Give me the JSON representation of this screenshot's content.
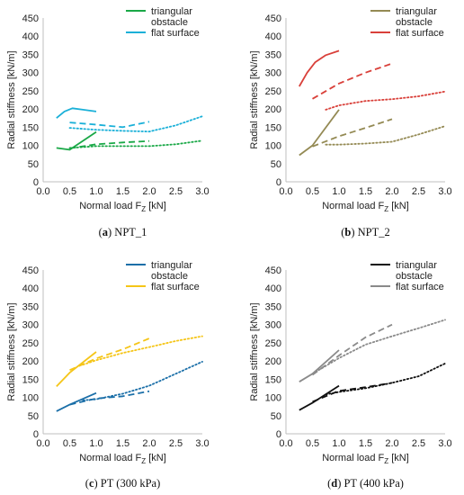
{
  "chart_data": [
    {
      "type": "line",
      "caption_letter": "a",
      "caption_text": "NPT_1",
      "xlabel": "Normal load F",
      "xlabel_sub": "Z",
      "xlabel_unit": " [kN]",
      "ylabel": "Radial stiffness [kN/m]",
      "xlim": [
        0,
        3
      ],
      "ylim": [
        0,
        450
      ],
      "xticks": [
        "0.0",
        "0.5",
        "1.0",
        "1.5",
        "2.0",
        "2.5",
        "3.0"
      ],
      "yticks": [
        "0",
        "50",
        "100",
        "150",
        "200",
        "250",
        "300",
        "350",
        "400",
        "450"
      ],
      "legend": [
        "triangular obstacle",
        "flat surface"
      ],
      "colors": [
        "#1aa847",
        "#1ab0d8"
      ],
      "series": [
        {
          "name": "triangular obstacle",
          "style": "solid",
          "x": [
            0.25,
            0.5,
            1.0
          ],
          "y": [
            93,
            88,
            137
          ]
        },
        {
          "name": "triangular obstacle",
          "style": "dashed",
          "x": [
            0.5,
            1.0,
            1.5,
            2.0
          ],
          "y": [
            92,
            103,
            108,
            112
          ]
        },
        {
          "name": "triangular obstacle",
          "style": "dotted",
          "x": [
            0.5,
            1.0,
            1.5,
            2.0,
            2.5,
            3.0
          ],
          "y": [
            93,
            98,
            98,
            98,
            103,
            113
          ]
        },
        {
          "name": "flat surface",
          "style": "solid",
          "x": [
            0.25,
            0.4,
            0.55,
            0.75,
            1.0
          ],
          "y": [
            175,
            193,
            202,
            198,
            193
          ]
        },
        {
          "name": "flat surface",
          "style": "dashed",
          "x": [
            0.5,
            1.0,
            1.5,
            2.0
          ],
          "y": [
            163,
            157,
            150,
            165
          ]
        },
        {
          "name": "flat surface",
          "style": "dotted",
          "x": [
            0.5,
            1.0,
            1.5,
            2.0,
            2.5,
            3.0
          ],
          "y": [
            148,
            143,
            140,
            138,
            155,
            180
          ]
        }
      ]
    },
    {
      "type": "line",
      "caption_letter": "b",
      "caption_text": "NPT_2",
      "xlabel": "Normal load F",
      "xlabel_sub": "Z",
      "xlabel_unit": " [kN]",
      "ylabel": "Radial stiffness [kN/m]",
      "xlim": [
        0,
        3
      ],
      "ylim": [
        0,
        450
      ],
      "xticks": [
        "0.0",
        "0.5",
        "1.0",
        "1.5",
        "2.0",
        "2.5",
        "3.0"
      ],
      "yticks": [
        "0",
        "50",
        "100",
        "150",
        "200",
        "250",
        "300",
        "350",
        "400",
        "450"
      ],
      "legend": [
        "triangular obstacle",
        "flat surface"
      ],
      "colors": [
        "#948a54",
        "#d9403a"
      ],
      "series": [
        {
          "name": "triangular obstacle",
          "style": "solid",
          "x": [
            0.25,
            0.5,
            1.0
          ],
          "y": [
            73,
            100,
            198
          ]
        },
        {
          "name": "triangular obstacle",
          "style": "dashed",
          "x": [
            0.5,
            1.0,
            1.5,
            2.0
          ],
          "y": [
            97,
            125,
            148,
            172
          ]
        },
        {
          "name": "triangular obstacle",
          "style": "dotted",
          "x": [
            0.75,
            1.0,
            1.5,
            2.0,
            2.5,
            3.0
          ],
          "y": [
            102,
            102,
            105,
            110,
            130,
            153
          ]
        },
        {
          "name": "flat surface",
          "style": "solid",
          "x": [
            0.25,
            0.4,
            0.55,
            0.75,
            1.0
          ],
          "y": [
            262,
            300,
            328,
            348,
            360
          ]
        },
        {
          "name": "flat surface",
          "style": "dashed",
          "x": [
            0.5,
            1.0,
            1.5,
            2.0
          ],
          "y": [
            228,
            270,
            300,
            325
          ]
        },
        {
          "name": "flat surface",
          "style": "dotted",
          "x": [
            0.75,
            1.0,
            1.5,
            2.0,
            2.5,
            3.0
          ],
          "y": [
            198,
            210,
            222,
            227,
            235,
            248
          ]
        }
      ]
    },
    {
      "type": "line",
      "caption_letter": "c",
      "caption_text": "PT (300 kPa)",
      "xlabel": "Normal load F",
      "xlabel_sub": "Z",
      "xlabel_unit": " [kN]",
      "ylabel": "Radial stiffness [kN/m]",
      "xlim": [
        0,
        3
      ],
      "ylim": [
        0,
        450
      ],
      "xticks": [
        "0.0",
        "0.5",
        "1.0",
        "1.5",
        "2.0",
        "2.5",
        "3.0"
      ],
      "yticks": [
        "0",
        "50",
        "100",
        "150",
        "200",
        "250",
        "300",
        "350",
        "400",
        "450"
      ],
      "legend": [
        "triangular obstacle",
        "flat surface"
      ],
      "colors": [
        "#1b6fa8",
        "#f5c518"
      ],
      "series": [
        {
          "name": "triangular obstacle",
          "style": "solid",
          "x": [
            0.25,
            0.5,
            1.0
          ],
          "y": [
            62,
            80,
            112
          ]
        },
        {
          "name": "triangular obstacle",
          "style": "dashed",
          "x": [
            0.5,
            1.0,
            1.5,
            2.0
          ],
          "y": [
            80,
            97,
            103,
            117
          ]
        },
        {
          "name": "triangular obstacle",
          "style": "dotted",
          "x": [
            0.75,
            1.0,
            1.5,
            2.0,
            2.5,
            3.0
          ],
          "y": [
            92,
            95,
            110,
            132,
            165,
            198
          ]
        },
        {
          "name": "flat surface",
          "style": "solid",
          "x": [
            0.25,
            0.5,
            1.0
          ],
          "y": [
            130,
            168,
            225
          ]
        },
        {
          "name": "flat surface",
          "style": "dashed",
          "x": [
            0.5,
            1.0,
            1.5,
            2.0
          ],
          "y": [
            175,
            207,
            232,
            262
          ]
        },
        {
          "name": "flat surface",
          "style": "dotted",
          "x": [
            0.75,
            1.0,
            1.5,
            2.0,
            2.5,
            3.0
          ],
          "y": [
            190,
            202,
            222,
            238,
            255,
            268
          ]
        }
      ]
    },
    {
      "type": "line",
      "caption_letter": "d",
      "caption_text": "PT (400 kPa)",
      "xlabel": "Normal load F",
      "xlabel_sub": "Z",
      "xlabel_unit": " [kN]",
      "ylabel": "Radial stiffness [kN/m]",
      "xlim": [
        0,
        3
      ],
      "ylim": [
        0,
        450
      ],
      "xticks": [
        "0.0",
        "0.5",
        "1.0",
        "1.5",
        "2.0",
        "2.5",
        "3.0"
      ],
      "yticks": [
        "0",
        "50",
        "100",
        "150",
        "200",
        "250",
        "300",
        "350",
        "400",
        "450"
      ],
      "legend": [
        "triangular obstacle",
        "flat surface"
      ],
      "colors": [
        "#111111",
        "#8a8a8a"
      ],
      "series": [
        {
          "name": "triangular obstacle",
          "style": "solid",
          "x": [
            0.25,
            0.5,
            1.0
          ],
          "y": [
            65,
            85,
            132
          ]
        },
        {
          "name": "triangular obstacle",
          "style": "dashed",
          "x": [
            0.5,
            1.0,
            1.5,
            2.0
          ],
          "y": [
            88,
            118,
            128,
            140
          ]
        },
        {
          "name": "triangular obstacle",
          "style": "dotted",
          "x": [
            0.75,
            1.0,
            1.5,
            2.0,
            2.5,
            3.0
          ],
          "y": [
            108,
            115,
            125,
            140,
            158,
            193
          ]
        },
        {
          "name": "flat surface",
          "style": "solid",
          "x": [
            0.25,
            0.5,
            1.0
          ],
          "y": [
            143,
            165,
            230
          ]
        },
        {
          "name": "flat surface",
          "style": "dashed",
          "x": [
            0.5,
            1.0,
            1.5,
            2.0
          ],
          "y": [
            162,
            215,
            265,
            300
          ]
        },
        {
          "name": "flat surface",
          "style": "dotted",
          "x": [
            0.5,
            1.0,
            1.5,
            2.0,
            2.5,
            3.0
          ],
          "y": [
            165,
            208,
            245,
            268,
            290,
            313
          ]
        }
      ]
    }
  ]
}
